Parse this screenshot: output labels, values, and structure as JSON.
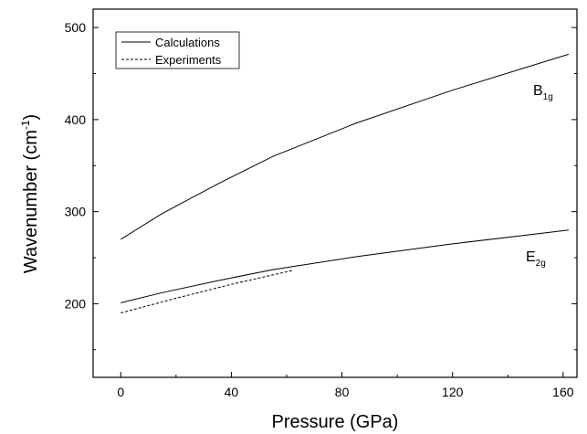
{
  "chart_data": {
    "type": "line",
    "xlabel": "Pressure (GPa)",
    "ylabel_main": "Wavenumber (cm",
    "ylabel_sup": "-1",
    "ylabel_close": ")",
    "xlim": [
      -10,
      165
    ],
    "ylim": [
      120,
      520
    ],
    "xticks": [
      0,
      40,
      80,
      120,
      160
    ],
    "yticks": [
      200,
      300,
      400,
      500
    ],
    "legend_position": "top-left",
    "series": [
      {
        "name": "Calculations",
        "style": "solid",
        "curves": [
          {
            "x": [
              0,
              15,
              35,
              55,
              85,
              120,
              162
            ],
            "y": [
              270,
              298,
              330,
              360,
              396,
              432,
              471
            ]
          },
          {
            "x": [
              0,
              15,
              35,
              55,
              85,
              120,
              162
            ],
            "y": [
              201,
              212,
              225,
              237,
              251,
              265,
              280
            ]
          }
        ]
      },
      {
        "name": "Experiments",
        "style": "dashed",
        "curves": [
          {
            "x": [
              0,
              20,
              40,
              62
            ],
            "y": [
              190,
              206,
              221,
              236
            ]
          }
        ]
      }
    ],
    "annotations": [
      {
        "main": "B",
        "sub": "1g",
        "x": 142,
        "y": 433
      },
      {
        "main": "E",
        "sub": "2g",
        "x": 142,
        "y": 255
      }
    ]
  }
}
